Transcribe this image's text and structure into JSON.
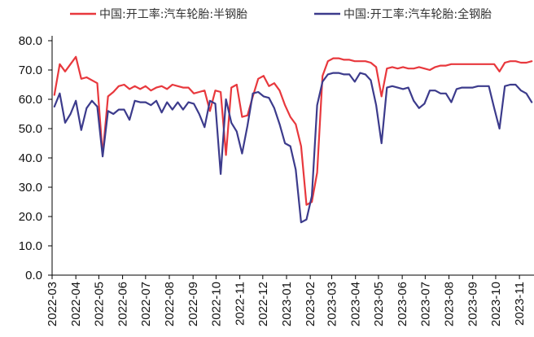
{
  "chart_data": {
    "type": "line",
    "title": "",
    "xlabel": "",
    "ylabel": "",
    "ylim": [
      0,
      80
    ],
    "y_ticks": [
      "0.0",
      "10.0",
      "20.0",
      "30.0",
      "40.0",
      "50.0",
      "60.0",
      "70.0",
      "80.0"
    ],
    "x_tick_labels": [
      "2022-03",
      "2022-04",
      "2022-05",
      "2022-06",
      "2022-07",
      "2022-08",
      "2022-09",
      "2022-10",
      "2022-11",
      "2022-12",
      "2023-01",
      "2023-02",
      "2023-03",
      "2023-04",
      "2023-05",
      "2023-06",
      "2023-07",
      "2023-08",
      "2023-09",
      "2023-10",
      "2023-11"
    ],
    "grid": false,
    "legend_position": "top",
    "x": [
      "2022-03-04",
      "2022-03-11",
      "2022-03-18",
      "2022-03-25",
      "2022-04-01",
      "2022-04-08",
      "2022-04-15",
      "2022-04-22",
      "2022-04-29",
      "2022-05-06",
      "2022-05-13",
      "2022-05-20",
      "2022-05-27",
      "2022-06-03",
      "2022-06-10",
      "2022-06-17",
      "2022-06-24",
      "2022-07-01",
      "2022-07-08",
      "2022-07-15",
      "2022-07-22",
      "2022-07-29",
      "2022-08-05",
      "2022-08-12",
      "2022-08-19",
      "2022-08-26",
      "2022-09-02",
      "2022-09-09",
      "2022-09-16",
      "2022-09-23",
      "2022-09-30",
      "2022-10-07",
      "2022-10-14",
      "2022-10-21",
      "2022-10-28",
      "2022-11-04",
      "2022-11-11",
      "2022-11-18",
      "2022-11-25",
      "2022-12-02",
      "2022-12-09",
      "2022-12-16",
      "2022-12-23",
      "2022-12-30",
      "2023-01-06",
      "2023-01-13",
      "2023-01-20",
      "2023-01-27",
      "2023-02-03",
      "2023-02-10",
      "2023-02-17",
      "2023-02-24",
      "2023-03-03",
      "2023-03-10",
      "2023-03-17",
      "2023-03-24",
      "2023-03-31",
      "2023-04-07",
      "2023-04-14",
      "2023-04-21",
      "2023-04-28",
      "2023-05-05",
      "2023-05-12",
      "2023-05-19",
      "2023-05-26",
      "2023-06-02",
      "2023-06-09",
      "2023-06-16",
      "2023-06-23",
      "2023-06-30",
      "2023-07-07",
      "2023-07-14",
      "2023-07-21",
      "2023-07-28",
      "2023-08-04",
      "2023-08-11",
      "2023-08-18",
      "2023-08-25",
      "2023-09-01",
      "2023-09-08",
      "2023-09-15",
      "2023-09-22",
      "2023-09-29",
      "2023-10-06",
      "2023-10-13",
      "2023-10-20",
      "2023-10-27",
      "2023-11-03",
      "2023-11-10",
      "2023-11-17"
    ],
    "series": [
      {
        "name": "中国:开工率:汽车轮胎:半钢胎",
        "color": "#e8383d",
        "values": [
          61.5,
          72.0,
          69.5,
          72.0,
          74.5,
          67.0,
          67.5,
          66.5,
          65.5,
          41.0,
          61.0,
          62.5,
          64.5,
          65.0,
          63.5,
          64.5,
          63.5,
          64.5,
          63.0,
          64.0,
          64.5,
          63.5,
          65.0,
          64.5,
          64.0,
          64.0,
          62.0,
          62.5,
          63.0,
          56.0,
          63.0,
          62.5,
          41.0,
          64.0,
          65.0,
          54.0,
          54.5,
          61.0,
          67.0,
          68.0,
          64.5,
          65.5,
          63.0,
          58.0,
          54.0,
          51.5,
          44.0,
          24.0,
          25.0,
          35.0,
          68.0,
          73.0,
          74.0,
          74.0,
          73.5,
          73.5,
          73.0,
          73.0,
          73.0,
          72.5,
          71.0,
          61.0,
          70.5,
          71.0,
          70.5,
          71.0,
          70.5,
          70.5,
          71.0,
          70.5,
          70.0,
          71.0,
          71.5,
          71.5,
          72.0,
          72.0,
          72.0,
          72.0,
          72.0,
          72.0,
          72.0,
          72.0,
          72.0,
          69.5,
          72.5,
          73.0,
          73.0,
          72.5,
          72.5,
          73.0
        ]
      },
      {
        "name": "中国:开工率:汽车轮胎:全钢胎",
        "color": "#3c3b8c",
        "values": [
          57.5,
          62.0,
          52.0,
          55.0,
          59.5,
          49.5,
          57.0,
          59.5,
          57.5,
          40.5,
          56.0,
          55.0,
          56.5,
          56.5,
          53.0,
          59.5,
          59.0,
          59.0,
          58.0,
          59.5,
          55.5,
          59.0,
          56.5,
          59.0,
          56.5,
          59.0,
          58.5,
          55.0,
          50.5,
          59.5,
          58.5,
          34.5,
          60.0,
          52.0,
          49.0,
          41.5,
          51.0,
          62.0,
          62.5,
          61.0,
          60.5,
          57.0,
          51.5,
          45.0,
          44.0,
          36.0,
          18.0,
          19.0,
          27.0,
          58.0,
          66.0,
          68.5,
          69.0,
          69.0,
          68.5,
          68.5,
          66.0,
          69.0,
          68.5,
          66.5,
          58.0,
          45.0,
          64.0,
          64.5,
          64.0,
          63.5,
          64.0,
          59.5,
          57.0,
          58.5,
          63.0,
          63.0,
          62.0,
          62.0,
          59.0,
          63.5,
          64.0,
          64.0,
          64.0,
          64.5,
          64.5,
          64.5,
          57.0,
          50.0,
          64.5,
          65.0,
          65.0,
          63.0,
          62.0,
          59.0
        ]
      }
    ]
  }
}
